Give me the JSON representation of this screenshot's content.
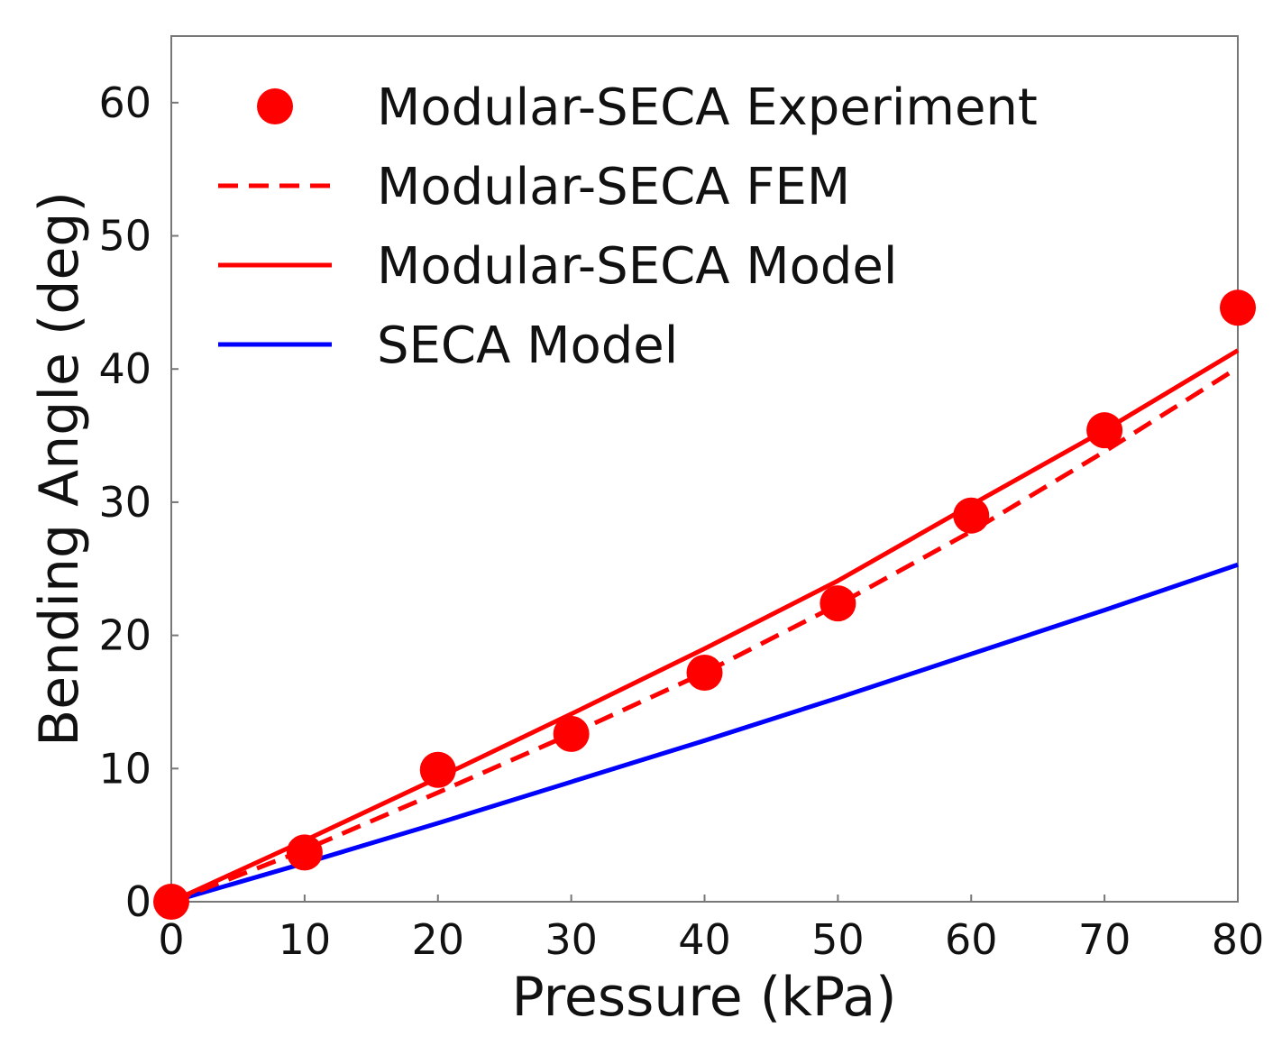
{
  "chart_data": {
    "type": "line",
    "title": "",
    "xlabel": "Pressure (kPa)",
    "ylabel": "Bending Angle (deg)",
    "xlim": [
      0,
      80
    ],
    "ylim": [
      0,
      65
    ],
    "xticks": [
      0,
      10,
      20,
      30,
      40,
      50,
      60,
      70,
      80
    ],
    "yticks": [
      0,
      10,
      20,
      30,
      40,
      50,
      60
    ],
    "grid": false,
    "legend_position": "top-left",
    "series": [
      {
        "name": "Modular-SECA Experiment",
        "kind": "scatter",
        "color": "#ff0000",
        "x": [
          0,
          10,
          20,
          30,
          40,
          50,
          60,
          70,
          80
        ],
        "y": [
          0,
          3.7,
          9.9,
          12.6,
          17.2,
          22.4,
          29.0,
          35.4,
          44.6
        ]
      },
      {
        "name": "Modular-SECA FEM",
        "kind": "dashed-line",
        "color": "#ff0000",
        "x": [
          0,
          10,
          20,
          30,
          40,
          50,
          60,
          70,
          80
        ],
        "y": [
          0,
          3.9,
          8.2,
          12.6,
          17.2,
          22.3,
          27.8,
          33.8,
          40.1
        ]
      },
      {
        "name": "Modular-SECA Model",
        "kind": "line",
        "color": "#ff0000",
        "x": [
          0,
          10,
          20,
          30,
          40,
          50,
          60,
          70,
          80
        ],
        "y": [
          0,
          4.6,
          9.3,
          14.1,
          19.0,
          24.1,
          29.8,
          35.4,
          41.4
        ]
      },
      {
        "name": "SECA Model",
        "kind": "line",
        "color": "#0000ff",
        "x": [
          0,
          10,
          20,
          30,
          40,
          50,
          60,
          70,
          80
        ],
        "y": [
          0,
          2.9,
          5.9,
          9.0,
          12.1,
          15.3,
          18.6,
          21.9,
          25.3
        ]
      }
    ]
  }
}
